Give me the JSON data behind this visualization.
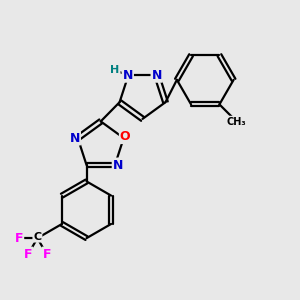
{
  "background_color": "#e8e8e8",
  "atom_colors": {
    "C": "#000000",
    "N": "#0000cc",
    "O": "#ff0000",
    "F": "#ff00ff",
    "H": "#008080"
  },
  "bond_color": "#000000",
  "bond_width": 1.6,
  "dbo": 0.08,
  "figsize": [
    3.0,
    3.0
  ],
  "dpi": 100
}
